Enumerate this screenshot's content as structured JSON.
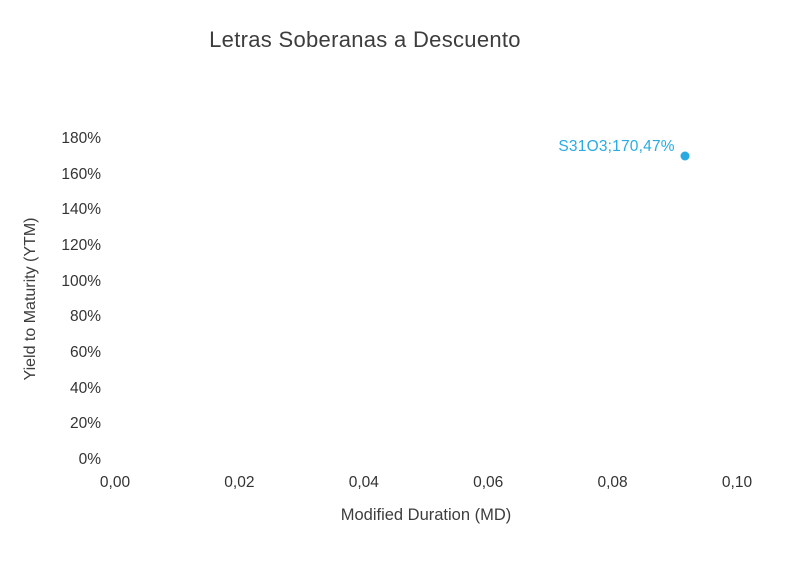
{
  "chart_data": {
    "type": "scatter",
    "title": "Letras Soberanas a Descuento",
    "xlabel": "Modified Duration (MD)",
    "ylabel": "Yield to Maturity (YTM)",
    "xlim": [
      0,
      0.1
    ],
    "ylim": [
      0,
      180
    ],
    "grid": false,
    "legend": false,
    "x_ticks": [
      "0,00",
      "0,02",
      "0,04",
      "0,06",
      "0,08",
      "0,10"
    ],
    "x_tick_values": [
      0,
      0.02,
      0.04,
      0.06,
      0.08,
      0.1
    ],
    "y_ticks": [
      "0%",
      "20%",
      "40%",
      "60%",
      "80%",
      "100%",
      "120%",
      "140%",
      "160%",
      "180%"
    ],
    "y_tick_values": [
      0,
      20,
      40,
      60,
      80,
      100,
      120,
      140,
      160,
      180
    ],
    "series": [
      {
        "name": "S31O3",
        "color": "#29abe2",
        "points": [
          {
            "x": 0.0916,
            "y": 170.47,
            "label": "S31O3;170,47%"
          }
        ]
      }
    ],
    "colors": {
      "background": "#ffffff",
      "title_text": "#3d3d3d",
      "axis_text": "#333333",
      "point": "#29abe2"
    }
  }
}
